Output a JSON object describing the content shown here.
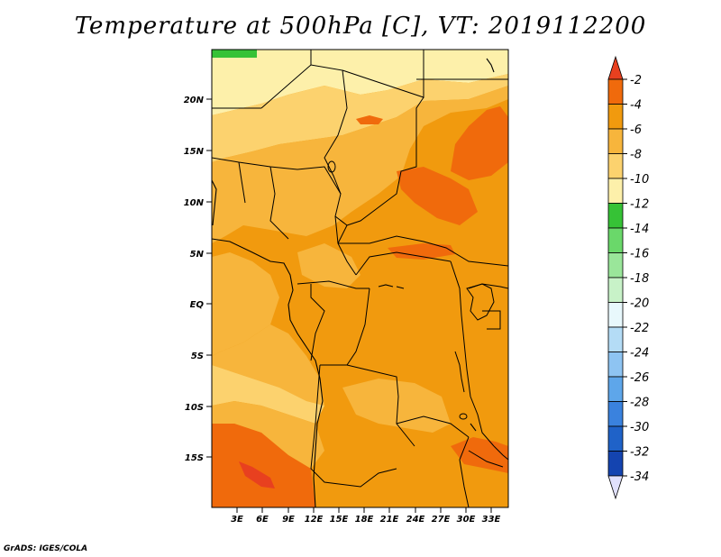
{
  "title": "Temperature at 500hPa [C], VT: 2019112200",
  "credit": "GrADS: IGES/COLA",
  "lat_labels": [
    "20N",
    "15N",
    "10N",
    "5N",
    "EQ",
    "5S",
    "10S",
    "15S"
  ],
  "lon_labels": [
    "3E",
    "6E",
    "9E",
    "12E",
    "15E",
    "18E",
    "21E",
    "24E",
    "27E",
    "30E",
    "33E"
  ],
  "colorbar": {
    "labels": [
      "-2",
      "-4",
      "-6",
      "-8",
      "-10",
      "-12",
      "-14",
      "-16",
      "-18",
      "-20",
      "-22",
      "-24",
      "-26",
      "-28",
      "-30",
      "-32",
      "-34"
    ],
    "colors": [
      "#e8401f",
      "#f06a0c",
      "#f19a0e",
      "#f7b53c",
      "#fcd26e",
      "#fdf0aa",
      "#36c236",
      "#6ad86a",
      "#9ae69a",
      "#c8f2c8",
      "#e8f8fc",
      "#b4dcf6",
      "#8ec4f2",
      "#5ea6ea",
      "#3a82de",
      "#1f62c8",
      "#1444b0",
      "#0c1a78",
      "#e0e0fc"
    ]
  },
  "palette": {
    "lightest": "#fdf0aa",
    "light": "#fcd26e",
    "mid": "#f7b53c",
    "base": "#f19a0e",
    "warm": "#f06a0c",
    "green": "#36c236"
  }
}
